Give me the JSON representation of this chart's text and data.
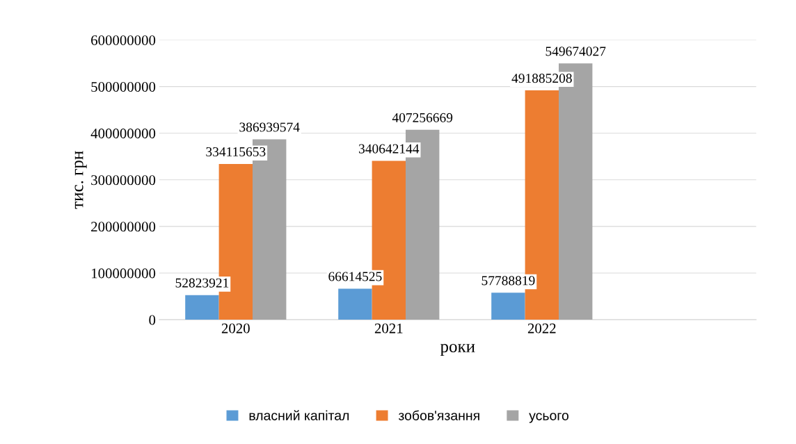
{
  "chart_data": {
    "type": "bar",
    "xlabel": "роки",
    "ylabel": "тис. грн",
    "categories": [
      "2020",
      "2021",
      "2022"
    ],
    "series": [
      {
        "name": "власний капітал",
        "color": "#5b9bd5",
        "values": [
          52823921,
          66614525,
          57788819
        ]
      },
      {
        "name": "зобов'язання",
        "color": "#ed7d31",
        "values": [
          334115653,
          340642144,
          491885208
        ]
      },
      {
        "name": "усього",
        "color": "#a5a5a5",
        "values": [
          386939574,
          407256669,
          549674027
        ]
      }
    ],
    "ylim": [
      0,
      600000000
    ],
    "yticks": [
      0,
      100000000,
      200000000,
      300000000,
      400000000,
      500000000,
      600000000
    ],
    "grid": "y",
    "legend": "bottom",
    "data_labels": true
  }
}
